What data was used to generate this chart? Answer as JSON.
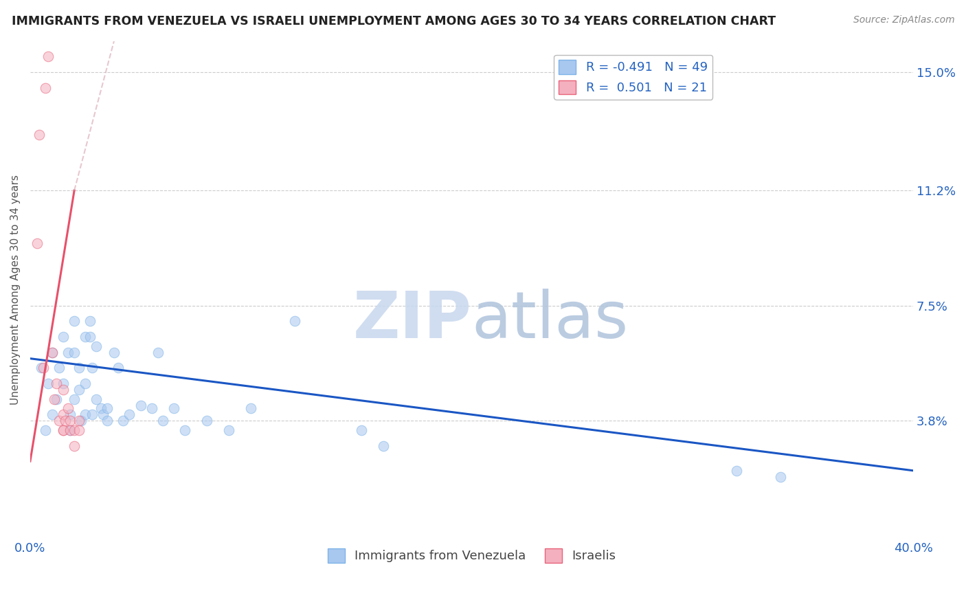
{
  "title": "IMMIGRANTS FROM VENEZUELA VS ISRAELI UNEMPLOYMENT AMONG AGES 30 TO 34 YEARS CORRELATION CHART",
  "source": "Source: ZipAtlas.com",
  "ylabel": "Unemployment Among Ages 30 to 34 years",
  "xlim": [
    0.0,
    0.4
  ],
  "ylim": [
    0.0,
    0.16
  ],
  "yticks": [
    0.0,
    0.038,
    0.075,
    0.112,
    0.15
  ],
  "ytick_labels": [
    "",
    "3.8%",
    "7.5%",
    "11.2%",
    "15.0%"
  ],
  "xtick_labels": [
    "0.0%",
    "40.0%"
  ],
  "legend_top": [
    {
      "label": "R = -0.491   N = 49",
      "face": "#A8C8F0",
      "edge": "#7EB3E8"
    },
    {
      "label": "R =  0.501   N = 21",
      "face": "#F4B0BF",
      "edge": "#E8637A"
    }
  ],
  "legend_bottom": [
    {
      "label": "Immigrants from Venezuela",
      "face": "#A8C8F0",
      "edge": "#7EB3E8"
    },
    {
      "label": "Israelis",
      "face": "#F4B0BF",
      "edge": "#E8637A"
    }
  ],
  "blue_scatter": [
    [
      0.005,
      0.055
    ],
    [
      0.007,
      0.035
    ],
    [
      0.008,
      0.05
    ],
    [
      0.01,
      0.06
    ],
    [
      0.01,
      0.04
    ],
    [
      0.012,
      0.045
    ],
    [
      0.013,
      0.055
    ],
    [
      0.015,
      0.05
    ],
    [
      0.015,
      0.065
    ],
    [
      0.017,
      0.06
    ],
    [
      0.018,
      0.04
    ],
    [
      0.018,
      0.035
    ],
    [
      0.02,
      0.07
    ],
    [
      0.02,
      0.06
    ],
    [
      0.02,
      0.045
    ],
    [
      0.022,
      0.055
    ],
    [
      0.022,
      0.048
    ],
    [
      0.023,
      0.038
    ],
    [
      0.025,
      0.065
    ],
    [
      0.025,
      0.05
    ],
    [
      0.025,
      0.04
    ],
    [
      0.027,
      0.07
    ],
    [
      0.027,
      0.065
    ],
    [
      0.028,
      0.055
    ],
    [
      0.028,
      0.04
    ],
    [
      0.03,
      0.062
    ],
    [
      0.03,
      0.045
    ],
    [
      0.032,
      0.042
    ],
    [
      0.033,
      0.04
    ],
    [
      0.035,
      0.042
    ],
    [
      0.035,
      0.038
    ],
    [
      0.038,
      0.06
    ],
    [
      0.04,
      0.055
    ],
    [
      0.042,
      0.038
    ],
    [
      0.045,
      0.04
    ],
    [
      0.05,
      0.043
    ],
    [
      0.055,
      0.042
    ],
    [
      0.058,
      0.06
    ],
    [
      0.06,
      0.038
    ],
    [
      0.065,
      0.042
    ],
    [
      0.07,
      0.035
    ],
    [
      0.08,
      0.038
    ],
    [
      0.09,
      0.035
    ],
    [
      0.1,
      0.042
    ],
    [
      0.12,
      0.07
    ],
    [
      0.15,
      0.035
    ],
    [
      0.16,
      0.03
    ],
    [
      0.32,
      0.022
    ],
    [
      0.34,
      0.02
    ]
  ],
  "pink_scatter": [
    [
      0.003,
      0.095
    ],
    [
      0.004,
      0.13
    ],
    [
      0.006,
      0.055
    ],
    [
      0.007,
      0.145
    ],
    [
      0.008,
      0.155
    ],
    [
      0.01,
      0.06
    ],
    [
      0.011,
      0.045
    ],
    [
      0.012,
      0.05
    ],
    [
      0.013,
      0.038
    ],
    [
      0.015,
      0.048
    ],
    [
      0.015,
      0.04
    ],
    [
      0.015,
      0.035
    ],
    [
      0.015,
      0.035
    ],
    [
      0.016,
      0.038
    ],
    [
      0.017,
      0.042
    ],
    [
      0.018,
      0.038
    ],
    [
      0.018,
      0.035
    ],
    [
      0.02,
      0.035
    ],
    [
      0.02,
      0.03
    ],
    [
      0.022,
      0.038
    ],
    [
      0.022,
      0.035
    ]
  ],
  "blue_line": [
    [
      0.0,
      0.058
    ],
    [
      0.4,
      0.022
    ]
  ],
  "pink_line_solid": [
    [
      0.0,
      0.025
    ],
    [
      0.02,
      0.112
    ]
  ],
  "pink_line_dashed": [
    [
      0.02,
      0.112
    ],
    [
      0.038,
      0.16
    ]
  ],
  "blue_line_color": "#1A56C4",
  "pink_line_color": "#E8506A",
  "pink_dashed_color": "#DDB0BB",
  "dot_alpha": 0.55,
  "dot_size": 110
}
